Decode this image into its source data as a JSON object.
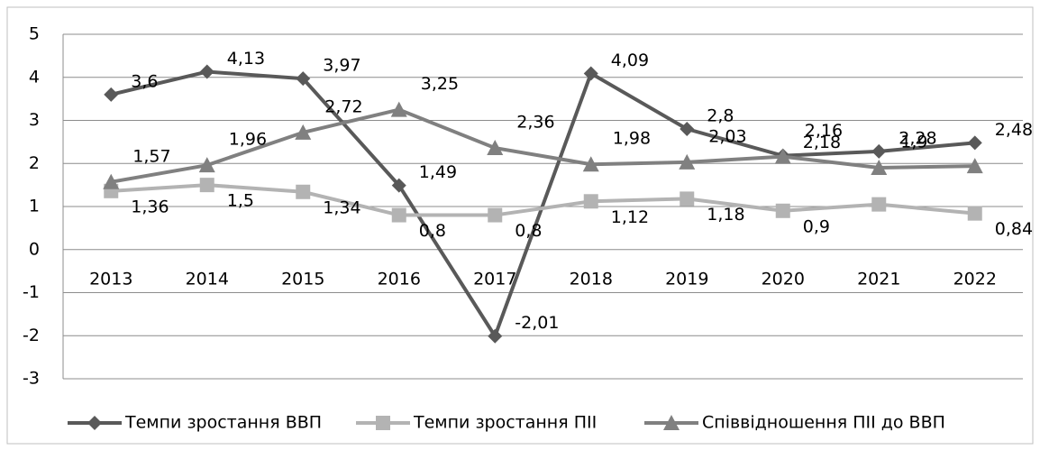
{
  "chart_data": {
    "type": "line",
    "categories": [
      "2013",
      "2014",
      "2015",
      "2016",
      "2017",
      "2018",
      "2019",
      "2020",
      "2021",
      "2022"
    ],
    "series": [
      {
        "name": "Темпи зростання ВВП",
        "color": "#595959",
        "marker": "diamond",
        "values": [
          3.6,
          4.13,
          3.97,
          1.49,
          -2.01,
          4.09,
          2.8,
          2.18,
          2.28,
          2.48
        ],
        "value_labels": [
          "3,6",
          "4,13",
          "3,97",
          "1,49",
          "-2,01",
          "4,09",
          "2,8",
          "2,18",
          "2,28",
          "2,48"
        ]
      },
      {
        "name": "Темпи зростання ПІІ",
        "color": "#b3b3b3",
        "marker": "square",
        "values": [
          1.36,
          1.5,
          1.34,
          0.8,
          0.8,
          1.12,
          1.18,
          0.9,
          1.05,
          0.84
        ],
        "value_labels": [
          "1,36",
          "1,5",
          "1,34",
          "0,8",
          "0,8",
          "1,12",
          "1,18",
          "0,9",
          null,
          "0,84"
        ]
      },
      {
        "name": "Співвідношення ПІІ до ВВП",
        "color": "#808080",
        "marker": "triangle",
        "values": [
          1.57,
          1.96,
          2.72,
          3.25,
          2.36,
          1.98,
          2.03,
          2.16,
          1.9,
          1.94
        ],
        "value_labels": [
          "1,57",
          "1,96",
          "2,72",
          "3,25",
          "2,36",
          "1,98",
          "2,03",
          "2,16",
          "1,9",
          null
        ]
      }
    ],
    "ylim": [
      -3,
      5
    ],
    "yticks": [
      -3,
      -2,
      -1,
      0,
      1,
      2,
      3,
      4,
      5
    ],
    "grid": true,
    "legend": "bottom"
  }
}
